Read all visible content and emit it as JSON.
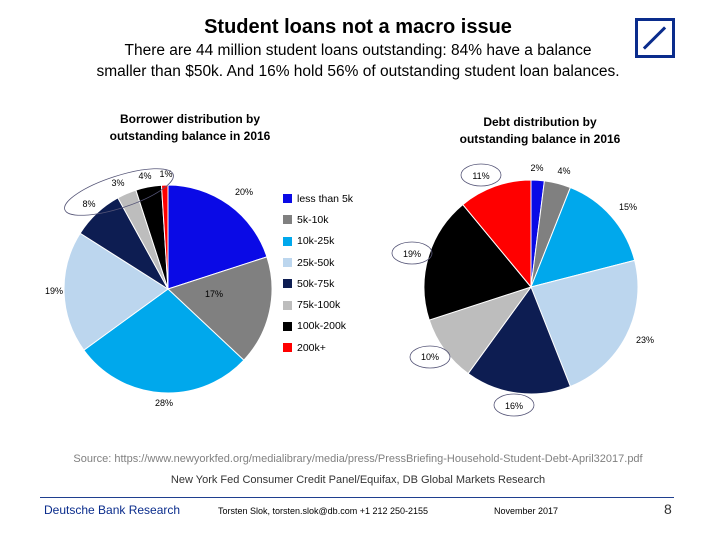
{
  "header": {
    "title": "Student loans not a macro issue",
    "subtitle_line1": "There are 44 million student loans outstanding: 84% have a balance",
    "subtitle_line2": "smaller than $50k. And 16% hold 56% of outstanding student loan balances."
  },
  "legend": [
    {
      "label": "less than 5k",
      "color": "#0a0ae6"
    },
    {
      "label": "5k-10k",
      "color": "#808080"
    },
    {
      "label": "10k-25k",
      "color": "#00a8ec"
    },
    {
      "label": "25k-50k",
      "color": "#bcd6ee"
    },
    {
      "label": "50k-75k",
      "color": "#0d1d52"
    },
    {
      "label": "75k-100k",
      "color": "#bdbdbd"
    },
    {
      "label": "100k-200k",
      "color": "#000000"
    },
    {
      "label": "200k+",
      "color": "#ff0000"
    }
  ],
  "chart_data": [
    {
      "type": "pie",
      "title_line1": "Borrower distribution by",
      "title_line2": "outstanding balance in 2016",
      "categories": [
        "less than 5k",
        "5k-10k",
        "10k-25k",
        "25k-50k",
        "50k-75k",
        "75k-100k",
        "100k-200k",
        "200k+"
      ],
      "values": [
        20,
        17,
        28,
        19,
        8,
        3,
        4,
        1
      ],
      "labels": [
        "20%",
        "17%",
        "28%",
        "19%",
        "8%",
        "3%",
        "4%",
        "1%"
      ],
      "colors": [
        "#0a0ae6",
        "#808080",
        "#00a8ec",
        "#bcd6ee",
        "#0d1d52",
        "#bdbdbd",
        "#000000",
        "#ff0000"
      ]
    },
    {
      "type": "pie",
      "title_line1": "Debt distribution by",
      "title_line2": "outstanding balance in 2016",
      "categories": [
        "less than 5k",
        "5k-10k",
        "10k-25k",
        "25k-50k",
        "50k-75k",
        "75k-100k",
        "100k-200k",
        "200k+"
      ],
      "values": [
        2,
        4,
        15,
        23,
        16,
        10,
        19,
        11
      ],
      "labels": [
        "2%",
        "4%",
        "15%",
        "23%",
        "16%",
        "10%",
        "19%",
        "11%"
      ],
      "colors": [
        "#0a0ae6",
        "#808080",
        "#00a8ec",
        "#bcd6ee",
        "#0d1d52",
        "#bdbdbd",
        "#000000",
        "#ff0000"
      ]
    }
  ],
  "source": {
    "line1": "Source: https://www.newyorkfed.org/medialibrary/media/press/PressBriefing-Household-Student-Debt-April32017.pdf",
    "line2": "New York Fed Consumer Credit Panel/Equifax, DB Global Markets Research"
  },
  "footer": {
    "brand": "Deutsche Bank Research",
    "contact": "Torsten Slok, torsten.slok@db.com  +1 212 250-2155",
    "date": "November  2017",
    "page": "8"
  }
}
